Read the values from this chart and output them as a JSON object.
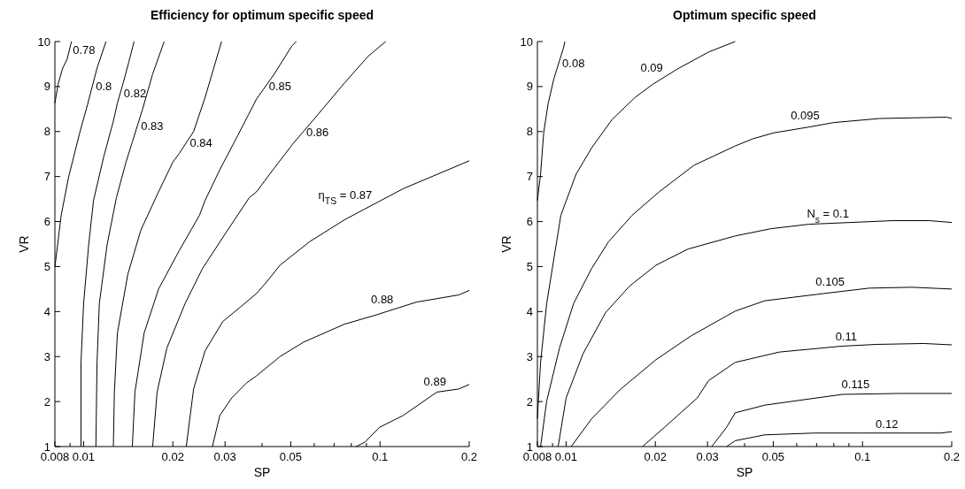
{
  "chart_data": [
    {
      "type": "line",
      "title": "Efficiency for optimum specific speed",
      "xlabel": "SP",
      "ylabel": "VR",
      "log": "x",
      "xlim": [
        0.008,
        0.2
      ],
      "ylim": [
        1,
        10
      ],
      "xticks": [
        0.008,
        {
          "value": 0.009,
          "label": null
        },
        0.01,
        0.02,
        0.03,
        {
          "value": 0.04,
          "label": null
        },
        0.05,
        {
          "value": 0.06,
          "label": null
        },
        {
          "value": 0.07,
          "label": null
        },
        {
          "value": 0.08,
          "label": null
        },
        {
          "value": 0.09,
          "label": null
        },
        0.1,
        0.2
      ],
      "yticks": [
        1,
        2,
        3,
        4,
        5,
        6,
        7,
        8,
        9,
        10
      ],
      "series": [
        {
          "name": "0.78",
          "color": "#000000",
          "x": [
            0.008,
            0.0082,
            0.0085,
            0.0088,
            0.0091
          ],
          "values": [
            8.63,
            9.05,
            9.41,
            9.61,
            10
          ]
        },
        {
          "name": "0.8",
          "color": "#000000",
          "x": [
            0.008,
            0.0084,
            0.0089,
            0.0097,
            0.0103,
            0.0111,
            0.0119
          ],
          "values": [
            4.99,
            6.14,
            6.99,
            7.97,
            8.59,
            9.41,
            10
          ]
        },
        {
          "name": "0.82",
          "color": "#000000",
          "x": [
            0.0098,
            0.0098,
            0.01,
            0.0104,
            0.0108,
            0.0117,
            0.0126,
            0.013,
            0.0136,
            0.0142,
            0.0148
          ],
          "values": [
            1,
            2.87,
            4.18,
            5.48,
            6.47,
            7.45,
            8.23,
            8.63,
            9.08,
            9.54,
            10
          ]
        },
        {
          "name": "0.83",
          "color": "#000000",
          "x": [
            0.011,
            0.0111,
            0.0113,
            0.012,
            0.0129,
            0.0139,
            0.0146,
            0.0158,
            0.0171,
            0.0187
          ],
          "values": [
            1,
            2.87,
            4.18,
            5.48,
            6.53,
            7.32,
            7.77,
            8.49,
            9.28,
            10
          ]
        },
        {
          "name": "0.84",
          "color": "#000000",
          "x": [
            0.0126,
            0.0127,
            0.013,
            0.0141,
            0.0156,
            0.0179,
            0.02,
            0.021,
            0.0235,
            0.0257,
            0.0292
          ],
          "values": [
            1,
            2.21,
            3.52,
            4.83,
            5.81,
            6.66,
            7.32,
            7.51,
            8,
            8.76,
            10
          ]
        },
        {
          "name": "0.85",
          "color": "#000000",
          "x": [
            0.0146,
            0.0149,
            0.016,
            0.0179,
            0.021,
            0.0246,
            0.0257,
            0.0288,
            0.0331,
            0.0383,
            0.044,
            0.0504,
            0.0522
          ],
          "values": [
            1,
            2.21,
            3.52,
            4.5,
            5.35,
            6.14,
            6.47,
            7.15,
            7.91,
            8.72,
            9.28,
            9.9,
            10
          ]
        },
        {
          "name": "0.86",
          "color": "#000000",
          "x": [
            0.0171,
            0.0177,
            0.0191,
            0.022,
            0.0252,
            0.0302,
            0.0362,
            0.0383,
            0.044,
            0.051,
            0.0591,
            0.0759,
            0.0911,
            0.1045
          ],
          "values": [
            1,
            2.21,
            3.19,
            4.18,
            4.96,
            5.75,
            6.53,
            6.66,
            7.19,
            7.74,
            8.23,
            9.08,
            9.67,
            10
          ]
        },
        {
          "name": "η$_{TS}$ = 0.87",
          "color": "#000000",
          "x": [
            0.0222,
            0.0235,
            0.0257,
            0.0295,
            0.0338,
            0.0383,
            0.0411,
            0.046,
            0.0578,
            0.0759,
            0.1197,
            0.1888,
            0.2
          ],
          "values": [
            1,
            2.28,
            3.13,
            3.78,
            4.1,
            4.4,
            4.63,
            5.03,
            5.55,
            6.04,
            6.73,
            7.28,
            7.35
          ]
        },
        {
          "name": "0.88",
          "color": "#000000",
          "x": [
            0.0272,
            0.0288,
            0.0316,
            0.0354,
            0.0383,
            0.046,
            0.0552,
            0.0759,
            0.0954,
            0.1327,
            0.1846,
            0.2
          ],
          "values": [
            1,
            1.69,
            2.08,
            2.41,
            2.57,
            3,
            3.32,
            3.72,
            3.91,
            4.21,
            4.37,
            4.47
          ]
        },
        {
          "name": "0.89",
          "color": "#000000",
          "x": [
            0.0831,
            0.089,
            0.0998,
            0.1197,
            0.1556,
            0.1846,
            0.2
          ],
          "values": [
            1,
            1.1,
            1.43,
            1.69,
            2.21,
            2.28,
            2.38
          ]
        }
      ]
    },
    {
      "type": "line",
      "title": "Optimum specific speed",
      "xlabel": "SP",
      "ylabel": "VR",
      "log": "x",
      "xlim": [
        0.008,
        0.2
      ],
      "ylim": [
        1,
        10
      ],
      "xticks": [
        0.008,
        {
          "value": 0.009,
          "label": null
        },
        0.01,
        0.02,
        0.03,
        {
          "value": 0.04,
          "label": null
        },
        0.05,
        {
          "value": 0.06,
          "label": null
        },
        {
          "value": 0.07,
          "label": null
        },
        {
          "value": 0.08,
          "label": null
        },
        {
          "value": 0.09,
          "label": null
        },
        0.1,
        0.2
      ],
      "yticks": [
        1,
        2,
        3,
        4,
        5,
        6,
        7,
        8,
        9,
        10
      ],
      "series": [
        {
          "name": "0.08",
          "color": "#000000",
          "x": [
            0.008,
            0.0082,
            0.0084,
            0.0087,
            0.0091,
            0.0098,
            0.0099
          ],
          "values": [
            6.47,
            7.05,
            7.97,
            8.63,
            9.18,
            9.86,
            10
          ]
        },
        {
          "name": "0.09",
          "color": "#000000",
          "x": [
            0.008,
            0.0082,
            0.0086,
            0.0096,
            0.0108,
            0.0122,
            0.0143,
            0.0171,
            0.0196,
            0.0236,
            0.0303,
            0.0372
          ],
          "values": [
            1.62,
            2.87,
            4.18,
            6.14,
            7.05,
            7.64,
            8.27,
            8.76,
            9.05,
            9.38,
            9.77,
            10
          ]
        },
        {
          "name": "0.095",
          "color": "#000000",
          "x": [
            0.0082,
            0.0086,
            0.0095,
            0.0106,
            0.0122,
            0.0139,
            0.0167,
            0.0206,
            0.027,
            0.0372,
            0.0427,
            0.0501,
            0.0659,
            0.08,
            0.114,
            0.1928,
            0.2
          ],
          "values": [
            1,
            2.01,
            3.19,
            4.18,
            4.96,
            5.55,
            6.14,
            6.66,
            7.25,
            7.68,
            7.84,
            7.97,
            8.1,
            8.2,
            8.29,
            8.32,
            8.29
          ]
        },
        {
          "name": "N$_{s}$ = 0.1",
          "color": "#000000",
          "x": [
            0.0094,
            0.01,
            0.0114,
            0.0136,
            0.0164,
            0.0201,
            0.0258,
            0.0372,
            0.049,
            0.0659,
            0.1263,
            0.1681,
            0.2
          ],
          "values": [
            1,
            2.08,
            3.06,
            3.98,
            4.57,
            5.03,
            5.39,
            5.68,
            5.84,
            5.94,
            6.02,
            6.02,
            5.98
          ]
        },
        {
          "name": "0.105",
          "color": "#000000",
          "x": [
            0.0104,
            0.0122,
            0.0153,
            0.0201,
            0.0264,
            0.0372,
            0.0468,
            0.0739,
            0.1052,
            0.1466,
            0.2
          ],
          "values": [
            1,
            1.62,
            2.28,
            2.93,
            3.46,
            4.01,
            4.24,
            4.4,
            4.52,
            4.54,
            4.5
          ]
        },
        {
          "name": "0.11",
          "color": "#000000",
          "x": [
            0.0181,
            0.0215,
            0.0277,
            0.0303,
            0.0372,
            0.0524,
            0.0847,
            0.1114,
            0.1606,
            0.2
          ],
          "values": [
            1,
            1.43,
            2.08,
            2.47,
            2.87,
            3.1,
            3.23,
            3.27,
            3.29,
            3.26
          ]
        },
        {
          "name": "0.115",
          "color": "#000000",
          "x": [
            0.031,
            0.0348,
            0.0372,
            0.0468,
            0.0601,
            0.0857,
            0.1338,
            0.2
          ],
          "values": [
            1,
            1.43,
            1.75,
            1.92,
            2.02,
            2.16,
            2.18,
            2.18
          ]
        },
        {
          "name": "0.12",
          "color": "#000000",
          "x": [
            0.0348,
            0.0372,
            0.0468,
            0.069,
            0.0971,
            0.184,
            0.2
          ],
          "values": [
            1,
            1.13,
            1.26,
            1.3,
            1.3,
            1.3,
            1.33
          ]
        }
      ]
    }
  ]
}
